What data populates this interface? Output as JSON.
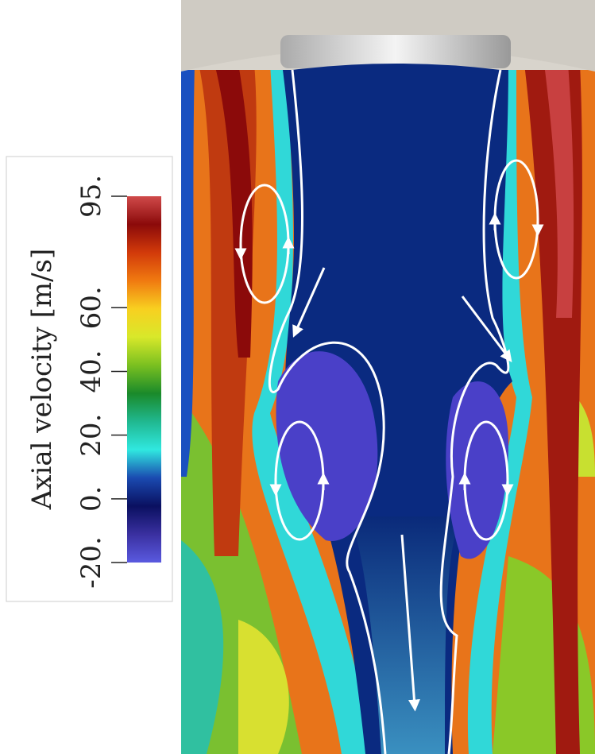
{
  "colorbar": {
    "title": "Axial velocity [m/s]",
    "range": [
      -20,
      95
    ],
    "ticks": [
      {
        "value": -20,
        "label": "-20."
      },
      {
        "value": 0,
        "label": "0."
      },
      {
        "value": 20,
        "label": "20."
      },
      {
        "value": 40,
        "label": "40."
      },
      {
        "value": 60,
        "label": "60."
      },
      {
        "value": 95,
        "label": "95."
      }
    ],
    "colormap": [
      "#d04a4a",
      "#8b0a0a",
      "#d23a0a",
      "#f07a10",
      "#f8d020",
      "#d8e82a",
      "#7ac020",
      "#1a8a2a",
      "#20b890",
      "#30e8e0",
      "#1a4ab0",
      "#0a1060",
      "#3a30a0",
      "#5a5ae0"
    ]
  }
}
